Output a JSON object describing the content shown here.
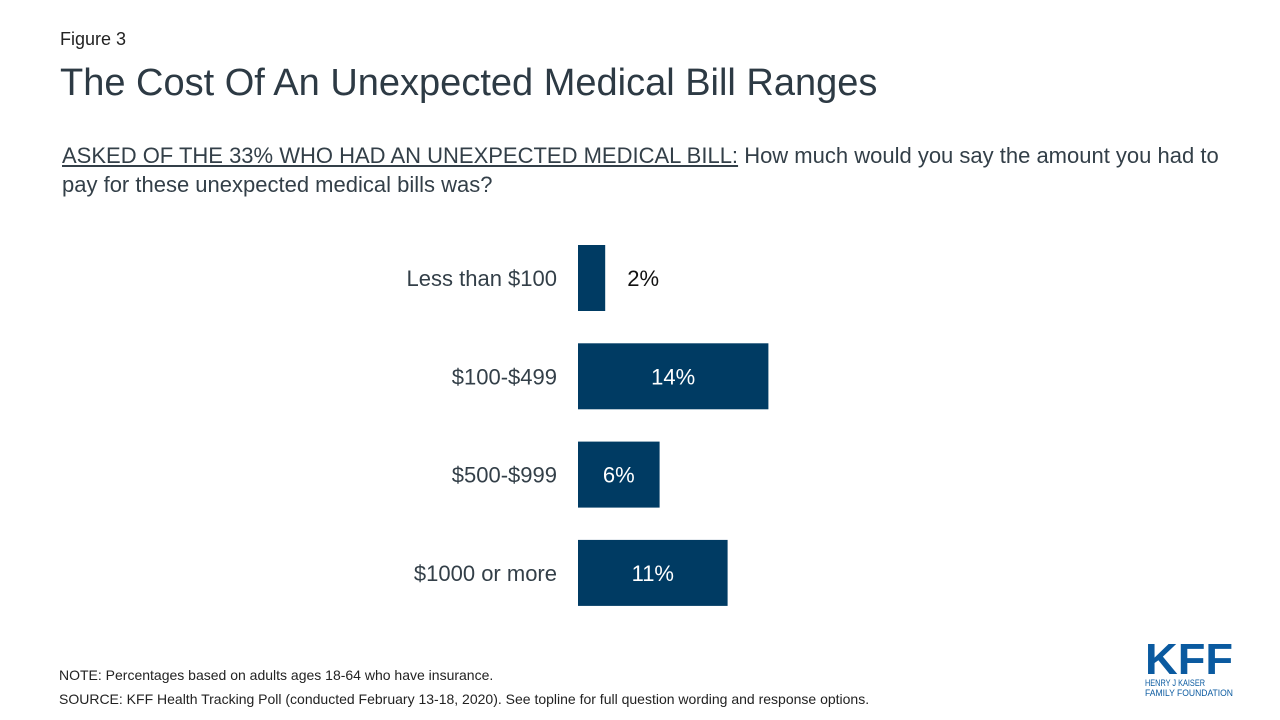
{
  "figure_label": "Figure 3",
  "title": "The Cost Of An Unexpected Medical Bill Ranges",
  "question": {
    "prefix": "ASKED OF THE 33% WHO HAD AN UNEXPECTED MEDICAL BILL:",
    "text": "How much would you say the amount you had to pay for these unexpected medical bills was?"
  },
  "chart_data": {
    "type": "bar",
    "orientation": "horizontal",
    "categories": [
      "Less than $100",
      "$100-$499",
      "$500-$999",
      "$1000 or more"
    ],
    "values": [
      2,
      14,
      6,
      11
    ],
    "data_labels": [
      "2%",
      "14%",
      "6%",
      "11%"
    ],
    "xlim": [
      0,
      14
    ],
    "grid": false,
    "legend": "none",
    "bar_color": "#003B63"
  },
  "notes": {
    "note": "NOTE: Percentages based on adults ages 18-64 who have insurance.",
    "source": "SOURCE: KFF Health Tracking Poll (conducted February 13-18, 2020). See topline for full question wording and response options."
  },
  "logo": {
    "mark": "KFF",
    "line1": "HENRY J KAISER",
    "line2": "FAMILY FOUNDATION",
    "color": "#0A5AA0"
  }
}
